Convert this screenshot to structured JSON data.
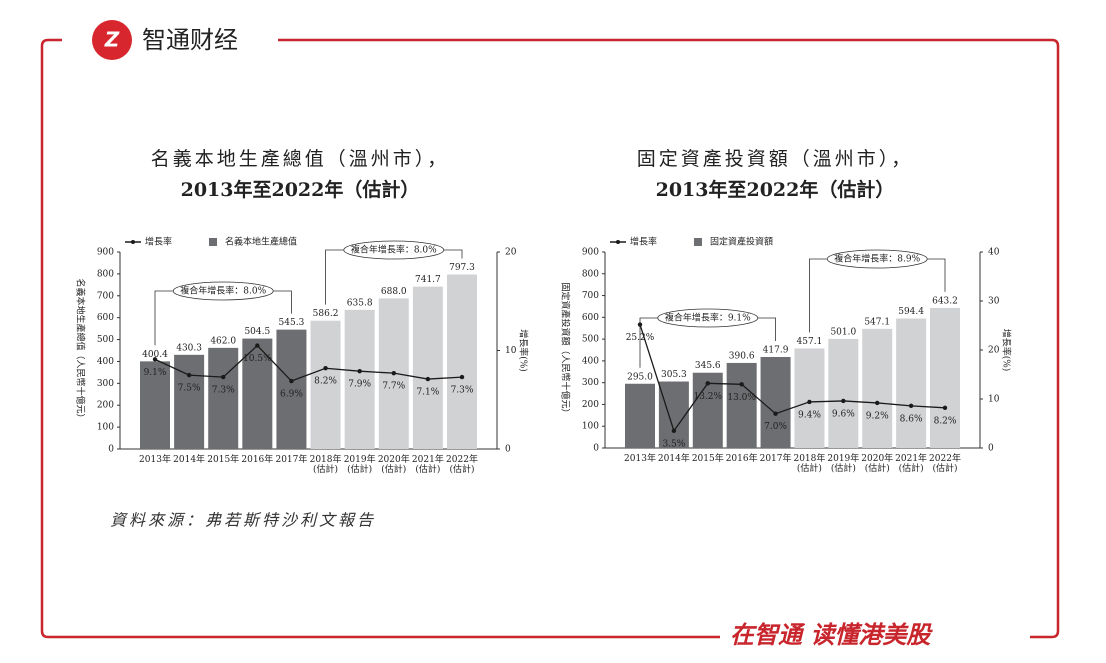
{
  "header": {
    "logo_text": "智通财经"
  },
  "chart_data": [
    {
      "type": "bar_line",
      "title": "名義本地生產總值（溫州市），",
      "subtitle": "2013年至2022年（估計）",
      "y_label": "名義本地生產總值（人民幣十億元）",
      "y2_label": "增長率(%)",
      "categories": [
        "2013年",
        "2014年",
        "2015年",
        "2016年",
        "2017年",
        "2018年\n(估計)",
        "2019年\n(估計)",
        "2020年\n(估計)",
        "2021年\n(估計)",
        "2022年\n(估計)"
      ],
      "series": [
        {
          "name": "增長率",
          "type": "line",
          "axis": "y2",
          "color": "#1a1a1a",
          "values": [
            9.1,
            7.5,
            7.3,
            10.5,
            6.9,
            8.2,
            7.9,
            7.7,
            7.1,
            7.3
          ],
          "value_labels": [
            "9.1%",
            "7.5%",
            "7.3%",
            "10.5%",
            "6.9%",
            "8.2%",
            "7.9%",
            "7.7%",
            "7.1%",
            "7.3%"
          ]
        },
        {
          "name": "名義本地生產總值",
          "type": "bar",
          "color": "#6d6e71",
          "colors": [
            "#6d6e71",
            "#6d6e71",
            "#6d6e71",
            "#6d6e71",
            "#6d6e71",
            "#d1d2d4",
            "#d1d2d4",
            "#d1d2d4",
            "#d1d2d4",
            "#d1d2d4"
          ],
          "values": [
            400.4,
            430.3,
            462.0,
            504.5,
            545.3,
            586.2,
            635.8,
            688.0,
            741.7,
            797.3
          ],
          "value_labels": [
            "400.4",
            "430.3",
            "462.0",
            "504.5",
            "545.3",
            "586.2",
            "635.8",
            "688.0",
            "741.7",
            "797.3"
          ]
        }
      ],
      "ylim": [
        0,
        900
      ],
      "yticks": [
        0,
        100,
        200,
        300,
        400,
        500,
        600,
        700,
        800,
        900
      ],
      "y2lim": [
        0,
        20
      ],
      "y2ticks": [
        0,
        10,
        20
      ],
      "annotations": [
        "複合年增長率：8.0%",
        "複合年增長率：8.0%"
      ]
    },
    {
      "type": "bar_line",
      "title": "固定資產投資額（溫州市），",
      "subtitle": "2013年至2022年（估計）",
      "y_label": "固定資產投資額（人民幣十億元）",
      "y2_label": "增長率(%)",
      "categories": [
        "2013年",
        "2014年",
        "2015年",
        "2016年",
        "2017年",
        "2018年\n(估計)",
        "2019年\n(估計)",
        "2020年\n(估計)",
        "2021年\n(估計)",
        "2022年\n(估計)"
      ],
      "series": [
        {
          "name": "增長率",
          "type": "line",
          "axis": "y2",
          "color": "#1a1a1a",
          "values": [
            25.2,
            3.5,
            13.2,
            13.0,
            7.0,
            9.4,
            9.6,
            9.2,
            8.6,
            8.2
          ],
          "value_labels": [
            "25.2%",
            "3.5%",
            "13.2%",
            "13.0%",
            "7.0%",
            "9.4%",
            "9.6%",
            "9.2%",
            "8.6%",
            "8.2%"
          ]
        },
        {
          "name": "固定資產投資額",
          "type": "bar",
          "color": "#6d6e71",
          "colors": [
            "#6d6e71",
            "#6d6e71",
            "#6d6e71",
            "#6d6e71",
            "#6d6e71",
            "#d1d2d4",
            "#d1d2d4",
            "#d1d2d4",
            "#d1d2d4",
            "#d1d2d4"
          ],
          "values": [
            295.0,
            305.3,
            345.6,
            390.6,
            417.9,
            457.1,
            501.0,
            547.1,
            594.4,
            643.2
          ],
          "value_labels": [
            "295.0",
            "305.3",
            "345.6",
            "390.6",
            "417.9",
            "457.1",
            "501.0",
            "547.1",
            "594.4",
            "643.2"
          ]
        }
      ],
      "ylim": [
        0,
        900
      ],
      "yticks": [
        0,
        100,
        200,
        300,
        400,
        500,
        600,
        700,
        800,
        900
      ],
      "y2lim": [
        0,
        40
      ],
      "y2ticks": [
        0,
        10,
        20,
        30,
        40
      ],
      "annotations": [
        "複合年增長率：9.1%",
        "複合年增長率：8.9%"
      ]
    }
  ],
  "footer": {
    "source": "資料來源：弗若斯特沙利文報告",
    "slogan": "在智通 读懂港美股"
  }
}
